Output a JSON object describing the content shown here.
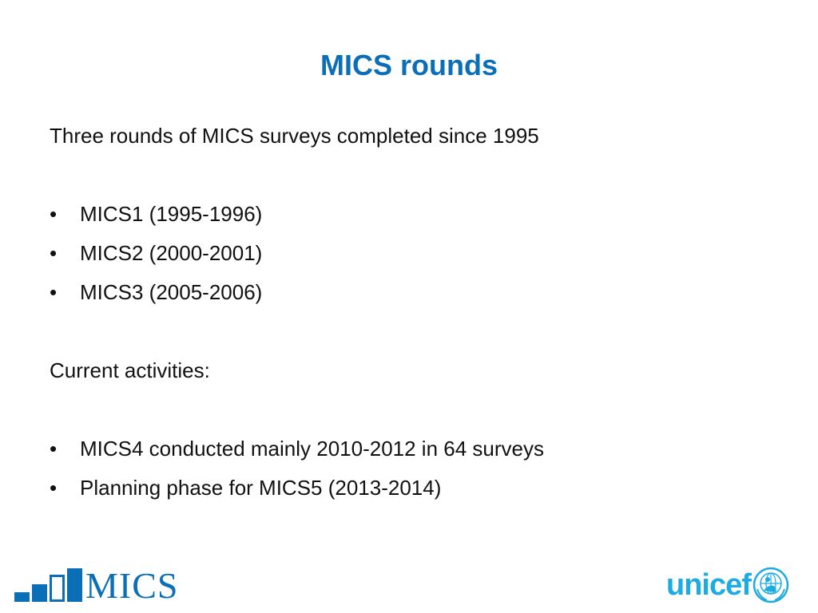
{
  "slide": {
    "title": "MICS rounds",
    "intro": "Three rounds of MICS surveys completed since 1995",
    "rounds": [
      "MICS1 (1995-1996)",
      "MICS2 (2000-2001)",
      "MICS3 (2005-2006)"
    ],
    "current_heading": "Current activities:",
    "current_items": [
      "MICS4 conducted mainly 2010-2012 in 64 surveys",
      "Planning phase for MICS5 (2013-2014)"
    ],
    "bullet": "•"
  },
  "logos": {
    "mics_text": "MICS",
    "unicef_text": "unicef",
    "mics_icon": "bar-chart-icon",
    "unicef_icon": "unicef-emblem-icon"
  },
  "colors": {
    "title": "#0b6fb8",
    "mics_blue": "#0b6fb8",
    "unicef_cyan": "#1cabe2"
  }
}
